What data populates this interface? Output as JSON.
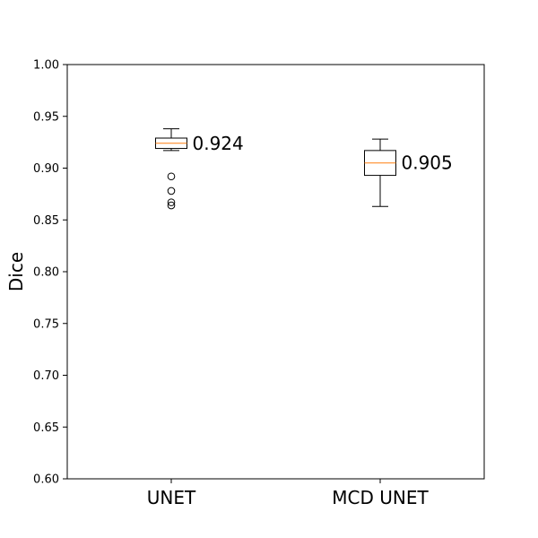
{
  "chart_data": {
    "type": "box",
    "title": "",
    "xlabel": "",
    "ylabel": "Dice",
    "ylim": [
      0.6,
      1.0
    ],
    "yticks": [
      "0.60",
      "0.65",
      "0.70",
      "0.75",
      "0.80",
      "0.85",
      "0.90",
      "0.95",
      "1.00"
    ],
    "grid": false,
    "categories": [
      "UNET",
      "MCD UNET"
    ],
    "boxes": [
      {
        "category": "UNET",
        "whisker_low": 0.917,
        "q1": 0.919,
        "median": 0.924,
        "q3": 0.929,
        "whisker_high": 0.938,
        "outliers": [
          0.892,
          0.878,
          0.867,
          0.864
        ],
        "annotation": "0.924"
      },
      {
        "category": "MCD UNET",
        "whisker_low": 0.863,
        "q1": 0.893,
        "median": 0.905,
        "q3": 0.917,
        "whisker_high": 0.928,
        "outliers": [],
        "annotation": "0.905"
      }
    ],
    "colors": {
      "box": "#000000",
      "median": "#ff7f0e"
    }
  }
}
